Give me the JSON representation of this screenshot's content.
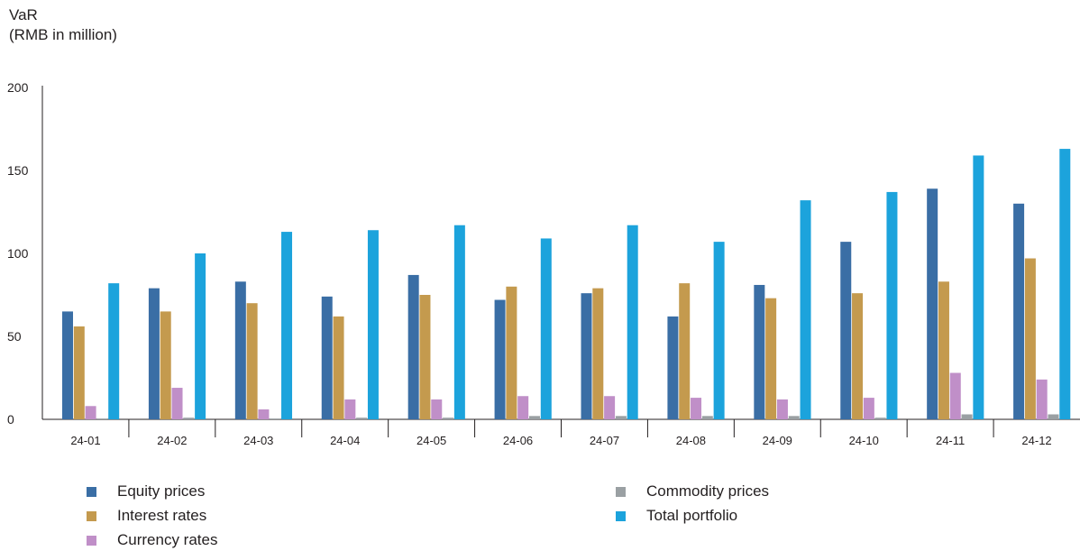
{
  "chart_data": {
    "type": "bar",
    "ylabel_line1": "VaR",
    "ylabel_line2": "(RMB in million)",
    "ylim": [
      0,
      200
    ],
    "yticks": [
      0,
      50,
      100,
      150,
      200
    ],
    "grid": false,
    "legend_position": "bottom",
    "categories": [
      "24-01",
      "24-02",
      "24-03",
      "24-04",
      "24-05",
      "24-06",
      "24-07",
      "24-08",
      "24-09",
      "24-10",
      "24-11",
      "24-12"
    ],
    "series": [
      {
        "name": "Equity prices",
        "color": "#3a6ea5",
        "values": [
          65,
          79,
          83,
          74,
          87,
          72,
          76,
          62,
          81,
          107,
          139,
          130
        ]
      },
      {
        "name": "Interest rates",
        "color": "#c49a4e",
        "values": [
          56,
          65,
          70,
          62,
          75,
          80,
          79,
          82,
          73,
          76,
          83,
          97
        ]
      },
      {
        "name": "Currency rates",
        "color": "#c08fc8",
        "values": [
          8,
          19,
          6,
          12,
          12,
          14,
          14,
          13,
          12,
          13,
          28,
          24
        ]
      },
      {
        "name": "Commodity prices",
        "color": "#9aa0a3",
        "values": [
          0.5,
          1,
          0.5,
          1,
          1,
          2,
          2,
          2,
          2,
          1,
          3,
          3
        ]
      },
      {
        "name": "Total portfolio",
        "color": "#1ca3dc",
        "values": [
          82,
          100,
          113,
          114,
          117,
          109,
          117,
          107,
          132,
          137,
          159,
          163
        ]
      }
    ]
  }
}
